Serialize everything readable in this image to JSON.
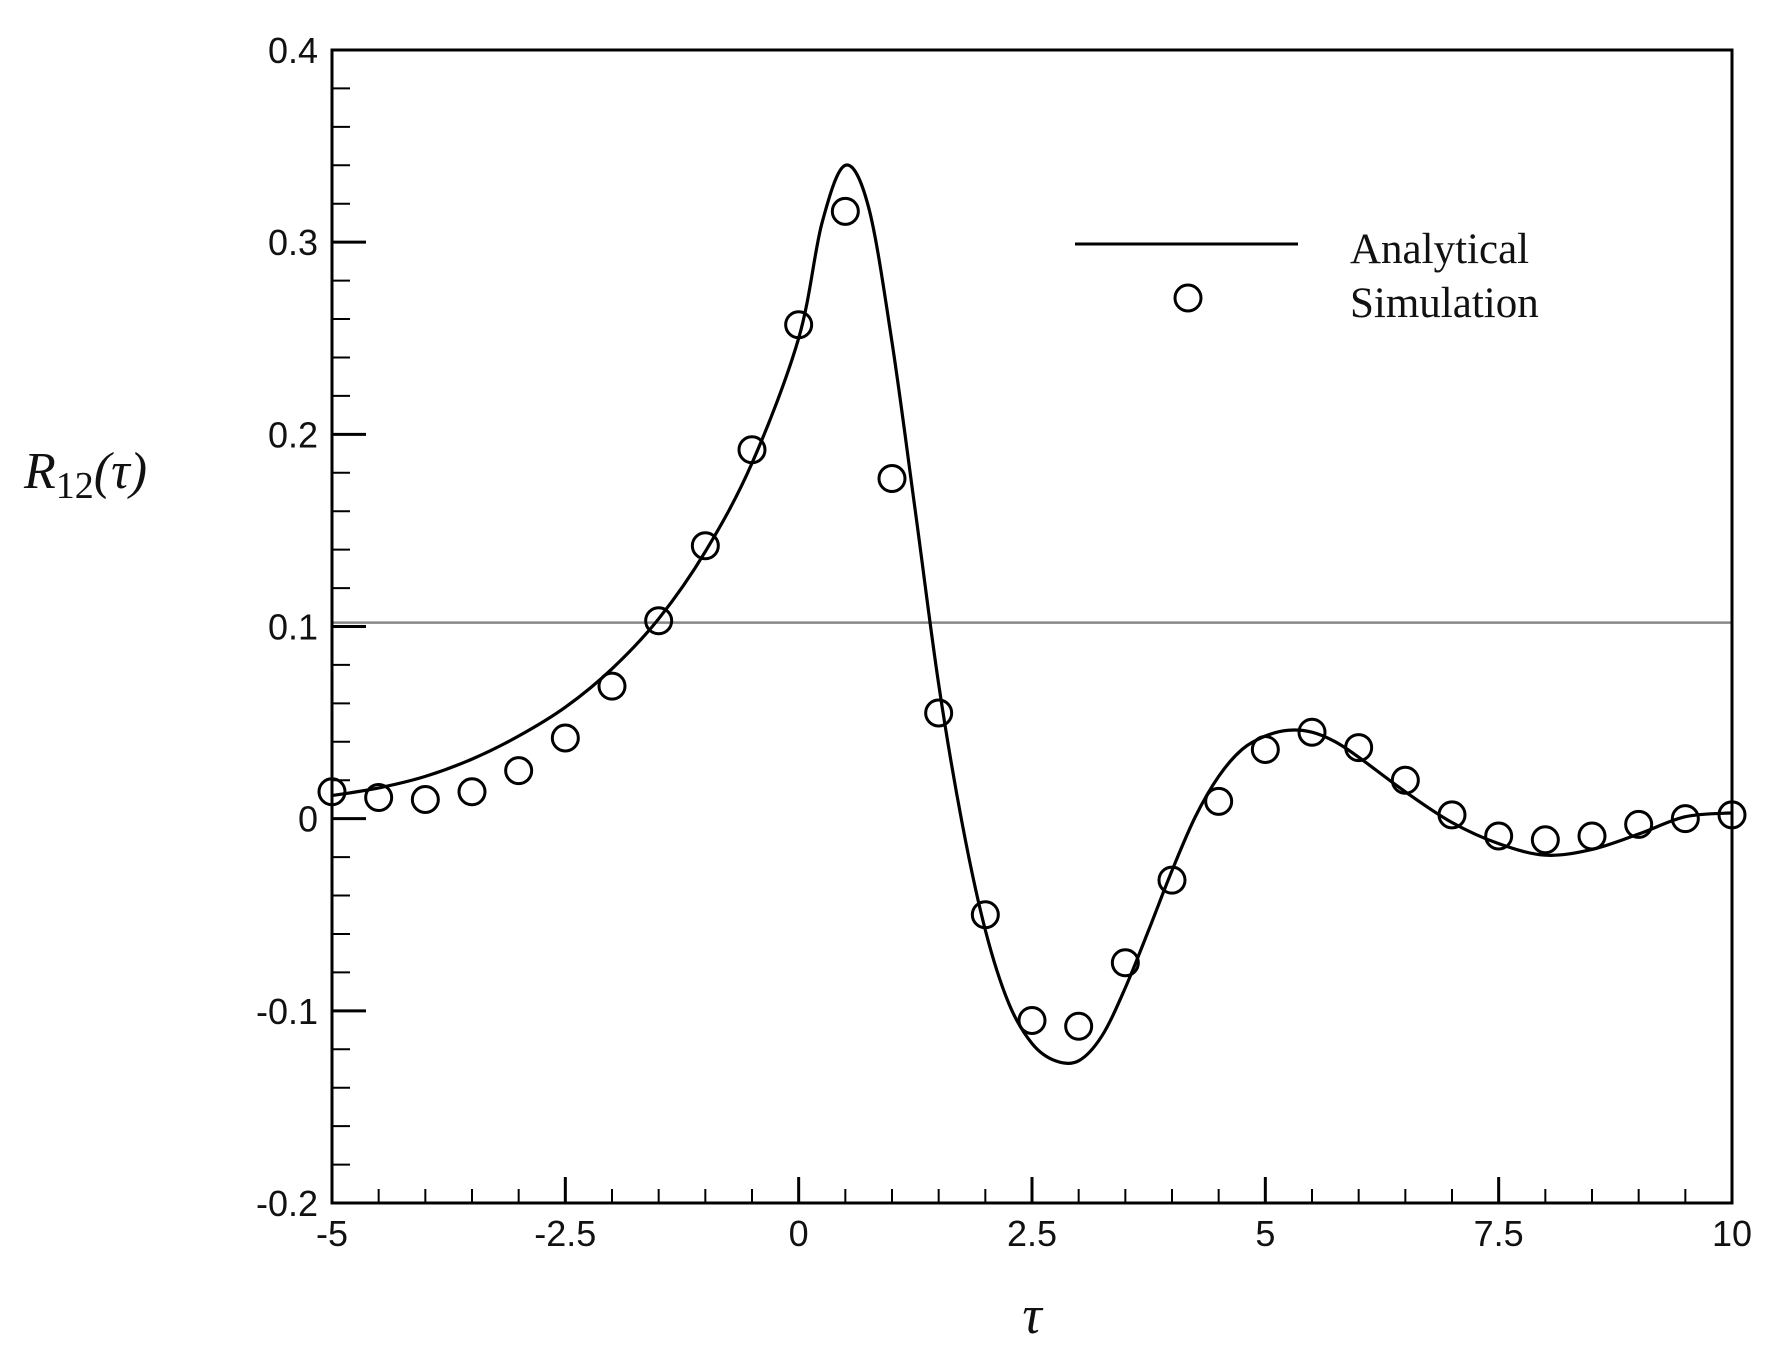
{
  "chart_data": {
    "type": "line",
    "xlabel": "τ",
    "ylabel": {
      "base": "R",
      "sub": "12",
      "args": "(τ)"
    },
    "xlim": [
      -5,
      10
    ],
    "ylim": [
      -0.2,
      0.4
    ],
    "xticks": [
      -5,
      -2.5,
      0,
      2.5,
      5,
      7.5,
      10
    ],
    "xtick_labels": [
      "-5",
      "-2.5",
      "0",
      "2.5",
      "5",
      "7.5",
      "10"
    ],
    "yticks": [
      -0.2,
      -0.1,
      0,
      0.1,
      0.2,
      0.3,
      0.4
    ],
    "ytick_labels": [
      "-0.2",
      "-0.1",
      "0",
      "0.1",
      "0.2",
      "0.3",
      "0.4"
    ],
    "grid": false,
    "legend_position": "top-right",
    "reference_line": {
      "y": 0.102,
      "color": "#888888"
    },
    "series": [
      {
        "name": "Analytical",
        "style": "solid-line",
        "color": "#000000",
        "x": [
          -5,
          -4.5,
          -4,
          -3.5,
          -3,
          -2.5,
          -2,
          -1.5,
          -1,
          -0.5,
          0,
          0.25,
          0.5,
          0.75,
          1,
          1.25,
          1.5,
          1.75,
          2,
          2.25,
          2.5,
          2.75,
          3,
          3.25,
          3.5,
          3.75,
          4,
          4.25,
          4.5,
          4.75,
          5,
          5.25,
          5.5,
          5.75,
          6,
          6.5,
          7,
          7.5,
          8,
          8.5,
          9,
          9.5,
          10
        ],
        "y": [
          0.012,
          0.016,
          0.022,
          0.031,
          0.043,
          0.058,
          0.078,
          0.104,
          0.139,
          0.185,
          0.25,
          0.31,
          0.34,
          0.318,
          0.248,
          0.16,
          0.07,
          -0.002,
          -0.058,
          -0.096,
          -0.117,
          -0.126,
          -0.126,
          -0.113,
          -0.088,
          -0.058,
          -0.027,
          0.001,
          0.022,
          0.036,
          0.043,
          0.046,
          0.045,
          0.04,
          0.032,
          0.014,
          -0.002,
          -0.013,
          -0.019,
          -0.016,
          -0.008,
          0.001,
          0.003
        ]
      },
      {
        "name": "Simulation",
        "style": "open-circle",
        "color": "#000000",
        "x": [
          -5,
          -4.5,
          -4,
          -3.5,
          -3,
          -2.5,
          -2,
          -1.5,
          -1,
          -0.5,
          0,
          0.5,
          1,
          1.5,
          2,
          2.5,
          3,
          3.5,
          4,
          4.5,
          5,
          5.5,
          6,
          6.5,
          7,
          7.5,
          8,
          8.5,
          9,
          9.5,
          10
        ],
        "y": [
          0.014,
          0.011,
          0.01,
          0.014,
          0.025,
          0.042,
          0.069,
          0.103,
          0.142,
          0.192,
          0.257,
          0.316,
          0.177,
          0.055,
          -0.05,
          -0.105,
          -0.108,
          -0.075,
          -0.032,
          0.009,
          0.036,
          0.045,
          0.037,
          0.02,
          0.002,
          -0.009,
          -0.011,
          -0.009,
          -0.003,
          0.0,
          0.002
        ]
      }
    ]
  }
}
